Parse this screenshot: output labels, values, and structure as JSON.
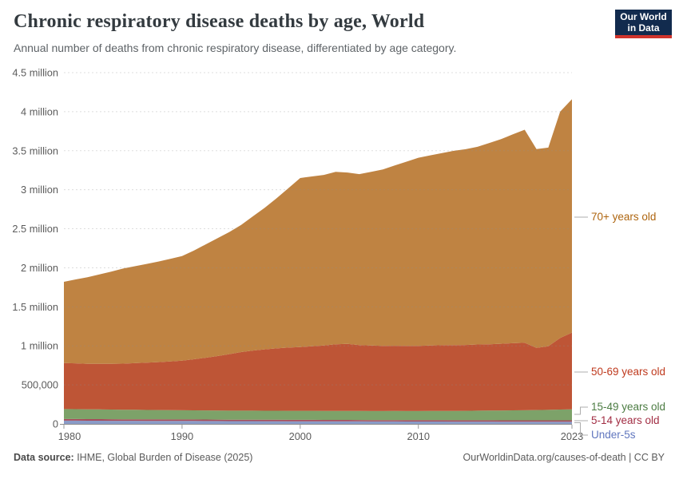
{
  "header": {
    "title": "Chronic respiratory disease deaths by age, World",
    "subtitle": "Annual number of deaths from chronic respiratory disease, differentiated by age category."
  },
  "logo": {
    "line1": "Our World",
    "line2": "in Data",
    "bg_color": "#122B4E",
    "stripe_color": "#D0342C"
  },
  "footer": {
    "source_label": "Data source:",
    "source_value": " IHME, Global Burden of Disease (2025)",
    "link": "OurWorldinData.org/causes-of-death",
    "license": " | CC BY"
  },
  "chart_data": {
    "type": "area",
    "stacked": true,
    "units": "millions of deaths per year",
    "grid": true,
    "legend_position": "right",
    "title": "Chronic respiratory disease deaths by age, World",
    "xlabel": "",
    "ylabel": "",
    "ylim": [
      0,
      4.5
    ],
    "x": [
      1980,
      1981,
      1982,
      1983,
      1984,
      1985,
      1986,
      1987,
      1988,
      1989,
      1990,
      1991,
      1992,
      1993,
      1994,
      1995,
      1996,
      1997,
      1998,
      1999,
      2000,
      2001,
      2002,
      2003,
      2004,
      2005,
      2006,
      2007,
      2008,
      2009,
      2010,
      2011,
      2012,
      2013,
      2014,
      2015,
      2016,
      2017,
      2018,
      2019,
      2020,
      2021,
      2022,
      2023
    ],
    "x_ticks": [
      {
        "value": 1980,
        "label": "1980"
      },
      {
        "value": 1990,
        "label": "1990"
      },
      {
        "value": 2000,
        "label": "2000"
      },
      {
        "value": 2010,
        "label": "2010"
      },
      {
        "value": 2023,
        "label": "2023"
      }
    ],
    "y_ticks": [
      {
        "value": 0,
        "label": "0"
      },
      {
        "value": 0.5,
        "label": "500,000"
      },
      {
        "value": 1,
        "label": "1 million"
      },
      {
        "value": 1.5,
        "label": "1.5 million"
      },
      {
        "value": 2,
        "label": "2 million"
      },
      {
        "value": 2.5,
        "label": "2.5 million"
      },
      {
        "value": 3,
        "label": "3 million"
      },
      {
        "value": 3.5,
        "label": "3.5 million"
      },
      {
        "value": 4,
        "label": "4 million"
      },
      {
        "value": 4.5,
        "label": "4.5 million"
      }
    ],
    "series": [
      {
        "id": "under-5s",
        "label": "Under-5s",
        "color": "#8A9BC7",
        "label_color": "#6076BE",
        "values": [
          0.042,
          0.042,
          0.041,
          0.041,
          0.04,
          0.04,
          0.04,
          0.039,
          0.039,
          0.038,
          0.038,
          0.038,
          0.037,
          0.037,
          0.036,
          0.036,
          0.036,
          0.035,
          0.035,
          0.034,
          0.034,
          0.034,
          0.033,
          0.033,
          0.033,
          0.033,
          0.032,
          0.032,
          0.032,
          0.031,
          0.031,
          0.031,
          0.031,
          0.03,
          0.03,
          0.03,
          0.03,
          0.029,
          0.029,
          0.029,
          0.029,
          0.029,
          0.028,
          0.028
        ]
      },
      {
        "id": "5-14-years",
        "label": "5-14 years old",
        "color": "#A64C5C",
        "label_color": "#A22E44",
        "values": [
          0.02,
          0.02,
          0.02,
          0.02,
          0.02,
          0.019,
          0.019,
          0.019,
          0.019,
          0.019,
          0.019,
          0.019,
          0.019,
          0.018,
          0.018,
          0.018,
          0.018,
          0.018,
          0.018,
          0.018,
          0.018,
          0.018,
          0.018,
          0.018,
          0.018,
          0.017,
          0.017,
          0.017,
          0.017,
          0.017,
          0.017,
          0.017,
          0.017,
          0.017,
          0.017,
          0.017,
          0.017,
          0.017,
          0.017,
          0.017,
          0.017,
          0.017,
          0.018,
          0.018
        ]
      },
      {
        "id": "15-49-years",
        "label": "15-49 years old",
        "color": "#7DA269",
        "label_color": "#4C7C43",
        "values": [
          0.128,
          0.127,
          0.126,
          0.125,
          0.124,
          0.123,
          0.122,
          0.121,
          0.12,
          0.119,
          0.118,
          0.117,
          0.117,
          0.116,
          0.116,
          0.116,
          0.116,
          0.116,
          0.116,
          0.116,
          0.116,
          0.116,
          0.116,
          0.116,
          0.116,
          0.116,
          0.116,
          0.116,
          0.117,
          0.117,
          0.117,
          0.118,
          0.119,
          0.12,
          0.121,
          0.123,
          0.124,
          0.126,
          0.128,
          0.129,
          0.132,
          0.134,
          0.138,
          0.141
        ]
      },
      {
        "id": "50-69-years",
        "label": "50-69 years old",
        "color": "#BE5536",
        "label_color": "#BF3A1E",
        "values": [
          0.59,
          0.587,
          0.583,
          0.583,
          0.586,
          0.59,
          0.597,
          0.606,
          0.614,
          0.624,
          0.635,
          0.654,
          0.675,
          0.698,
          0.724,
          0.75,
          0.77,
          0.786,
          0.799,
          0.81,
          0.817,
          0.827,
          0.838,
          0.853,
          0.859,
          0.844,
          0.839,
          0.834,
          0.835,
          0.835,
          0.835,
          0.839,
          0.841,
          0.842,
          0.843,
          0.848,
          0.85,
          0.855,
          0.86,
          0.864,
          0.797,
          0.815,
          0.916,
          0.983
        ]
      },
      {
        "id": "70-plus-years",
        "label": "70+ years old",
        "color": "#BF8342",
        "label_color": "#AE650F",
        "values": [
          1.04,
          1.075,
          1.11,
          1.147,
          1.18,
          1.218,
          1.242,
          1.265,
          1.288,
          1.315,
          1.34,
          1.392,
          1.452,
          1.51,
          1.565,
          1.63,
          1.72,
          1.815,
          1.922,
          2.042,
          2.165,
          2.175,
          2.185,
          2.21,
          2.195,
          2.19,
          2.225,
          2.26,
          2.31,
          2.36,
          2.41,
          2.435,
          2.462,
          2.49,
          2.508,
          2.532,
          2.578,
          2.622,
          2.675,
          2.73,
          2.545,
          2.545,
          2.9,
          2.99
        ]
      }
    ]
  }
}
